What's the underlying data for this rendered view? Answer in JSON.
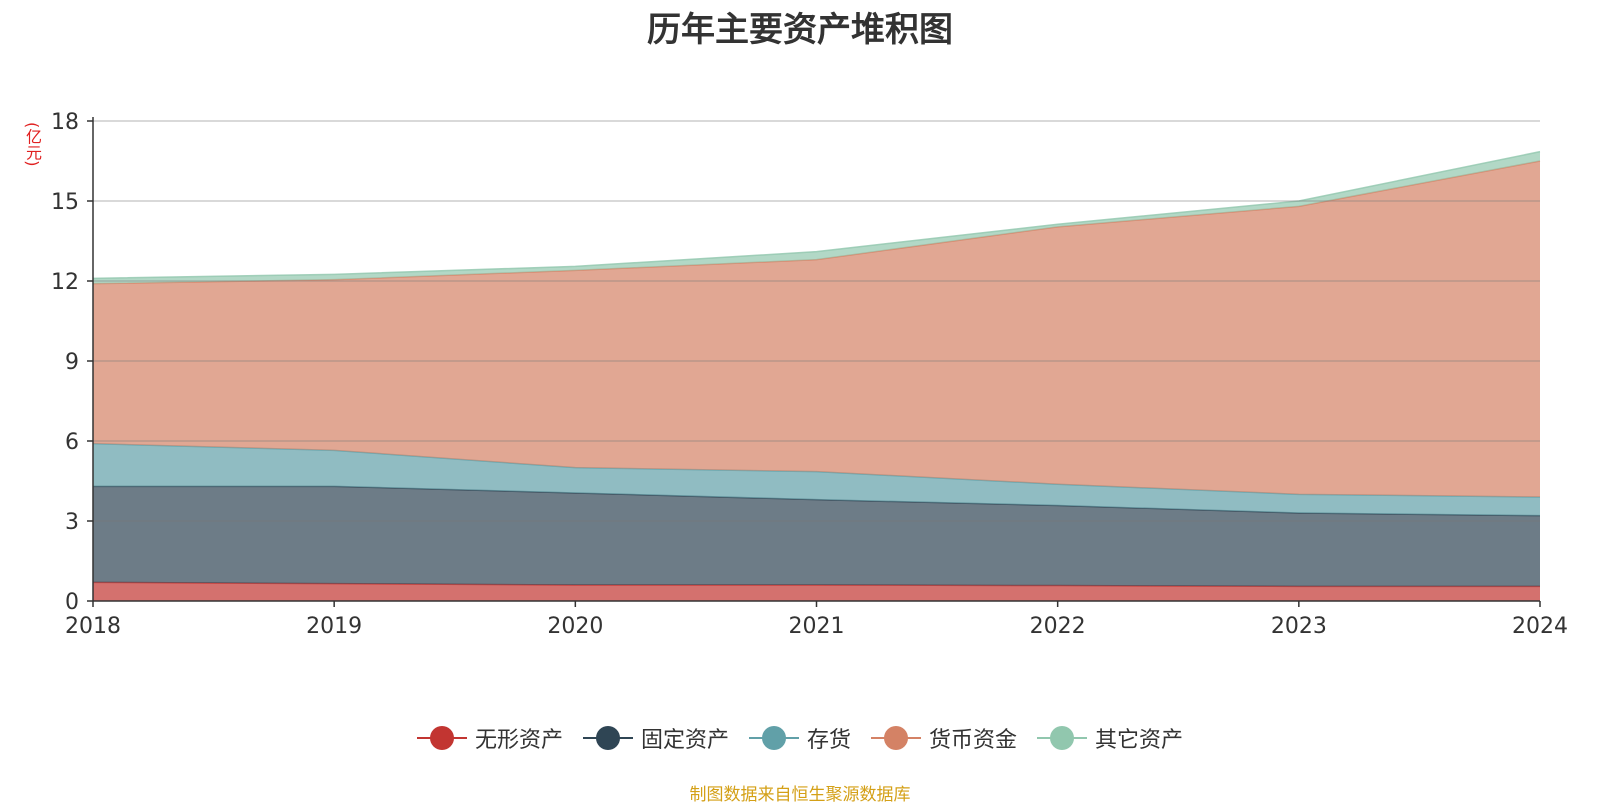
{
  "title": "历年主要资产堆积图",
  "unit_label": "(亿元)",
  "source_note": "制图数据来自恒生聚源数据库",
  "chart_data": {
    "type": "area",
    "stacked": true,
    "title": "历年主要资产堆积图",
    "ylabel": "(亿元)",
    "x": [
      "2018",
      "2019",
      "2020",
      "2021",
      "2022",
      "2023",
      "2024"
    ],
    "ylim": [
      0,
      18
    ],
    "yticks": [
      0,
      3,
      6,
      9,
      12,
      15,
      18
    ],
    "grid": true,
    "legend_position": "bottom",
    "series": [
      {
        "name": "无形资产",
        "color": "#c23531",
        "values": [
          0.7,
          0.65,
          0.6,
          0.6,
          0.58,
          0.55,
          0.55
        ]
      },
      {
        "name": "固定资产",
        "color": "#2f4554",
        "values": [
          3.6,
          3.65,
          3.45,
          3.2,
          3.0,
          2.75,
          2.65
        ]
      },
      {
        "name": "存货",
        "color": "#61a0a8",
        "values": [
          1.6,
          1.35,
          0.95,
          1.05,
          0.8,
          0.7,
          0.7
        ]
      },
      {
        "name": "货币资金",
        "color": "#d48265",
        "values": [
          6.0,
          6.4,
          7.4,
          7.95,
          9.65,
          10.8,
          12.6
        ]
      },
      {
        "name": "其它资产",
        "color": "#91c7ae",
        "values": [
          0.2,
          0.2,
          0.15,
          0.3,
          0.1,
          0.2,
          0.35
        ]
      }
    ]
  }
}
